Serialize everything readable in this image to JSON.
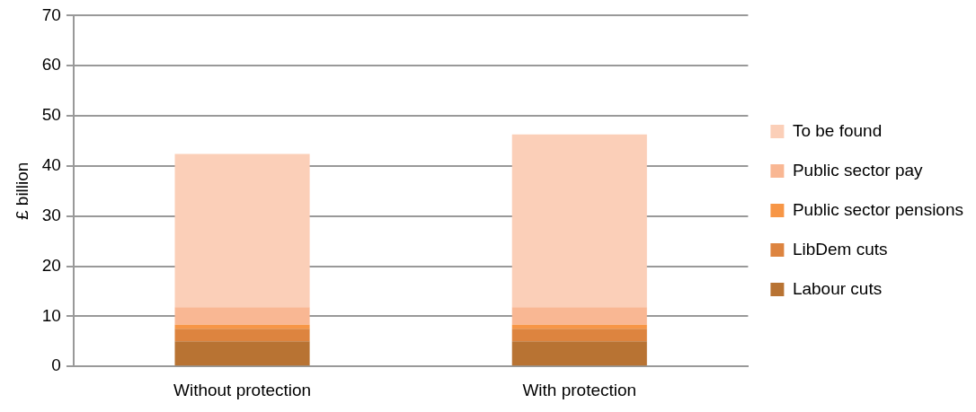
{
  "chart_data": {
    "type": "bar",
    "stacked": true,
    "ylabel": "£ billion",
    "categories": [
      "Without protection",
      "With protection"
    ],
    "series": [
      {
        "name": "Labour cuts",
        "color": "#b87333",
        "values": [
          5.0,
          5.0
        ]
      },
      {
        "name": "LibDem cuts",
        "color": "#dd843f",
        "values": [
          2.5,
          2.5
        ]
      },
      {
        "name": "Public sector pensions",
        "color": "#f79646",
        "values": [
          0.8,
          0.8
        ]
      },
      {
        "name": "Public sector pay",
        "color": "#f9b793",
        "values": [
          3.5,
          3.5
        ]
      },
      {
        "name": "To be found",
        "color": "#fbcfb8",
        "values": [
          30.6,
          34.5
        ]
      }
    ],
    "ylim": [
      0,
      70
    ],
    "yticks": [
      0,
      10,
      20,
      30,
      40,
      50,
      60,
      70
    ],
    "grid": "y",
    "legend": "right"
  }
}
